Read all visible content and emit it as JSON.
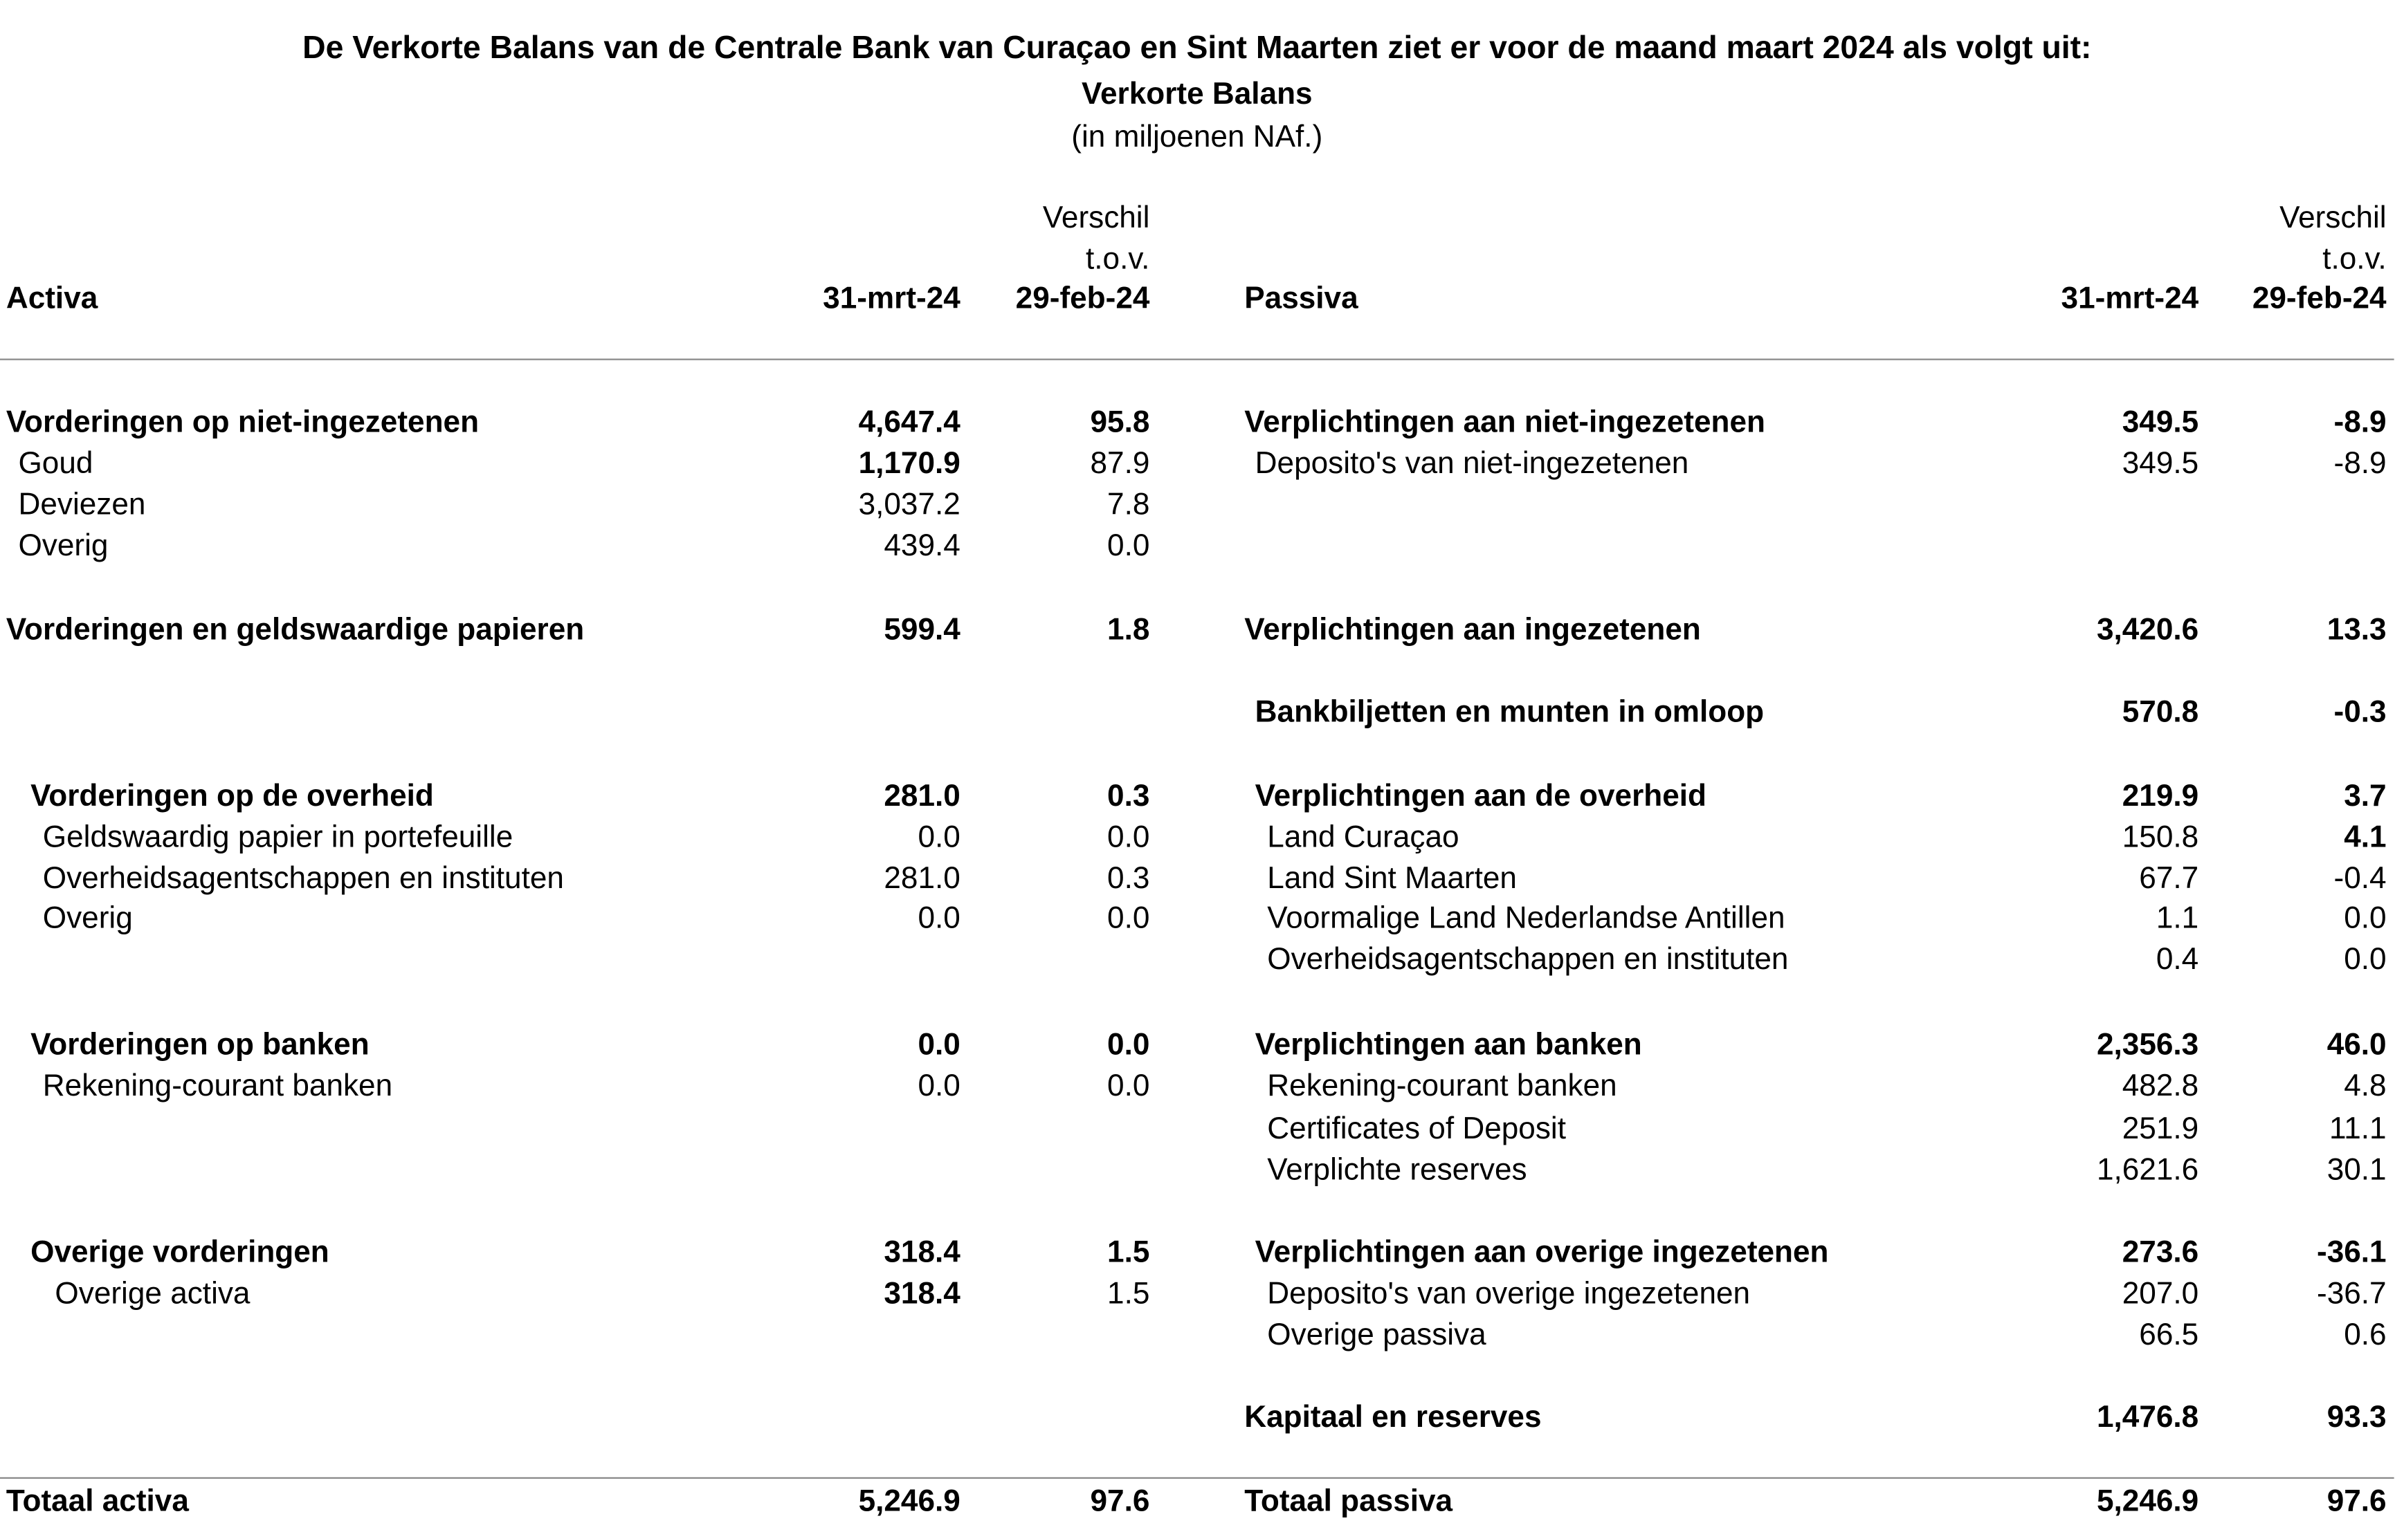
{
  "header": {
    "title": "De Verkorte Balans van de Centrale Bank van Curaçao en Sint Maarten ziet er voor de maand maart 2024 als volgt uit:",
    "subtitle": "Verkorte Balans",
    "unit": "(in miljoenen NAf.)"
  },
  "activa": {
    "columns": [
      "Activa",
      "31-mrt-24",
      [
        "Verschil",
        "t.o.v.",
        "29-feb-24"
      ]
    ],
    "rows": [
      [
        "Vorderingen op niet-ingezetenen",
        "4,647.4",
        "95.8"
      ],
      [
        "Goud",
        "1,170.9",
        "87.9"
      ],
      [
        "Deviezen",
        "3,037.2",
        "7.8"
      ],
      [
        "Overig",
        "439.4",
        "0.0"
      ],
      [
        "Vorderingen en geldswaardige papieren",
        "599.4",
        "1.8"
      ],
      [
        "Vorderingen op de overheid",
        "281.0",
        "0.3"
      ],
      [
        "Geldswaardig papier in portefeuille",
        "0.0",
        "0.0"
      ],
      [
        "Overheidsagentschappen en instituten",
        "281.0",
        "0.3"
      ],
      [
        "Overig",
        "0.0",
        "0.0"
      ],
      [
        "Vorderingen op banken",
        "0.0",
        "0.0"
      ],
      [
        "Rekening-courant banken",
        "0.0",
        "0.0"
      ],
      [
        "Overige vorderingen",
        "318.4",
        "1.5"
      ],
      [
        "Overige activa",
        "318.4",
        "1.5"
      ],
      [
        "Totaal activa",
        "5,246.9",
        "97.6"
      ]
    ]
  },
  "passiva": {
    "columns": [
      "Passiva",
      "31-mrt-24",
      [
        "Verschil",
        "t.o.v.",
        "29-feb-24"
      ]
    ],
    "rows": [
      [
        "Verplichtingen aan niet-ingezetenen",
        "349.5",
        "-8.9"
      ],
      [
        "Deposito's van niet-ingezetenen",
        "349.5",
        "-8.9"
      ],
      [
        "Verplichtingen aan ingezetenen",
        "3,420.6",
        "13.3"
      ],
      [
        "Bankbiljetten en munten in omloop",
        "570.8",
        "-0.3"
      ],
      [
        "Verplichtingen aan de overheid",
        "219.9",
        "3.7"
      ],
      [
        "Land Curaçao",
        "150.8",
        "4.1"
      ],
      [
        "Land Sint Maarten",
        "67.7",
        "-0.4"
      ],
      [
        "Voormalige Land Nederlandse Antillen",
        "1.1",
        "0.0"
      ],
      [
        "Overheidsagentschappen en instituten",
        "0.4",
        "0.0"
      ],
      [
        "Verplichtingen aan banken",
        "2,356.3",
        "46.0"
      ],
      [
        "Rekening-courant banken",
        "482.8",
        "4.8"
      ],
      [
        "Certificates of Deposit",
        "251.9",
        "11.1"
      ],
      [
        "Verplichte reserves",
        "1,621.6",
        "30.1"
      ],
      [
        "Verplichtingen aan overige ingezetenen",
        "273.6",
        "-36.1"
      ],
      [
        "Deposito's van overige ingezetenen",
        "207.0",
        "-36.7"
      ],
      [
        "Overige passiva",
        "66.5",
        "0.6"
      ],
      [
        "Kapitaal en reserves",
        "1,476.8",
        "93.3"
      ],
      [
        "Totaal passiva",
        "5,246.9",
        "97.6"
      ]
    ]
  }
}
